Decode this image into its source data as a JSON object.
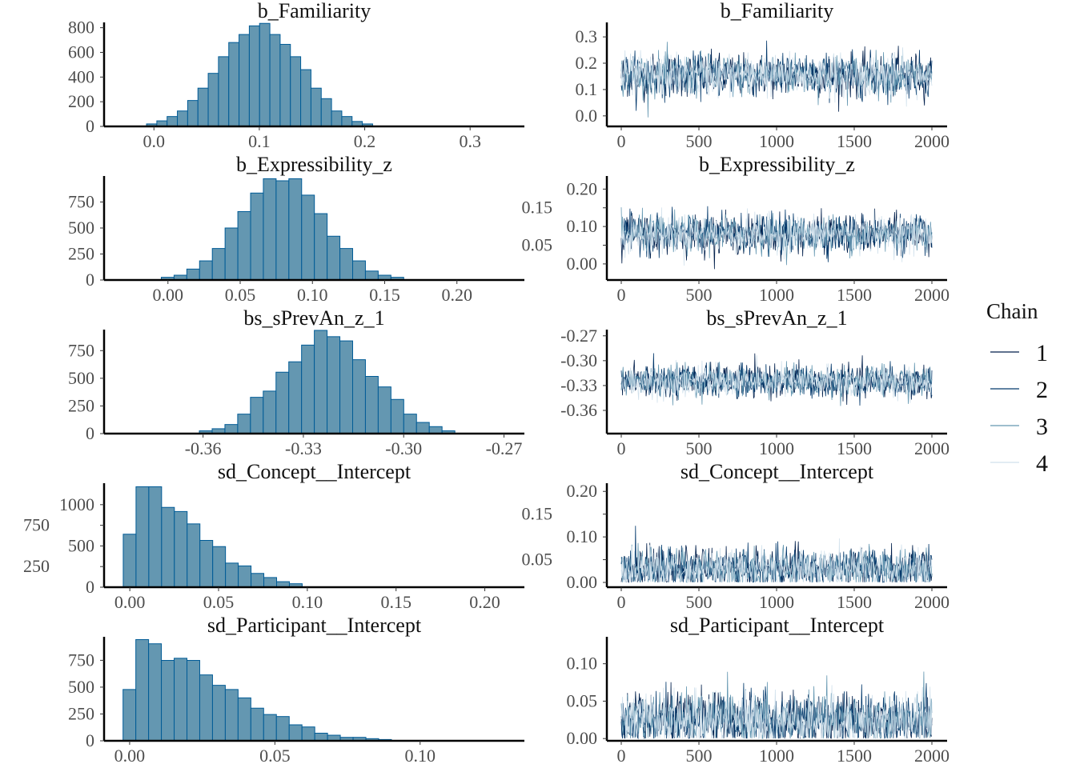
{
  "chart_data": {
    "type": "histogram+trace",
    "legend": {
      "title": "Chain",
      "position": "right",
      "entries": [
        "1",
        "2",
        "3",
        "4"
      ],
      "colors": [
        "#011f4b",
        "#03396c",
        "#6497b1",
        "#d1e1ec"
      ]
    },
    "hist_fill": "#6497b1",
    "hist_stroke": "#005b96",
    "parameters": [
      {
        "title": "b_Familiarity",
        "hist": {
          "xlim": [
            -0.0473,
            0.3515
          ],
          "ylim": [
            0,
            843
          ],
          "xticks": [
            0.0,
            0.1,
            0.2,
            0.3
          ],
          "xtick_labels": [
            "0.0",
            "0.1",
            "0.2",
            "0.3"
          ],
          "yticks": [
            0,
            200,
            400,
            600,
            800
          ],
          "ytick_labels": [
            "0",
            "200",
            "400",
            "600",
            "800"
          ],
          "bin_start": -0.007,
          "bin_width": 0.00975,
          "counts": [
            20,
            45,
            80,
            125,
            210,
            310,
            430,
            565,
            680,
            745,
            815,
            835,
            745,
            665,
            565,
            460,
            310,
            225,
            125,
            80,
            40,
            20
          ]
        },
        "trace": {
          "ylim": [
            -0.04,
            0.355
          ],
          "yticks": [
            0.0,
            0.1,
            0.2,
            0.3
          ],
          "ytick_labels": [
            "0.0",
            "0.1",
            "0.2",
            "0.3"
          ],
          "mean": 0.155,
          "sd": 0.04,
          "floor": null
        }
      },
      {
        "title": "b_Expressibility_z",
        "hist": {
          "xlim": [
            -0.0442,
            0.2467
          ],
          "ylim": [
            0,
            1000
          ],
          "xticks": [
            0.0,
            0.05,
            0.1,
            0.15,
            0.2
          ],
          "xtick_labels": [
            "0.00",
            "0.05",
            "0.10",
            "0.15",
            "0.20"
          ],
          "yticks": [
            0,
            250,
            500,
            750
          ],
          "ytick_labels": [
            "0",
            "250",
            "500",
            "750"
          ],
          "bin_start": -0.0046,
          "bin_width": 0.00883,
          "counts": [
            26,
            46,
            105,
            184,
            303,
            500,
            658,
            836,
            974,
            954,
            974,
            816,
            638,
            421,
            303,
            184,
            86,
            46,
            26
          ]
        },
        "trace": {
          "ylim": [
            -0.043,
            0.235
          ],
          "yticks": [
            0.0,
            0.05,
            0.1,
            0.15,
            0.2
          ],
          "ytick_labels": [
            "0.00",
            "0.05",
            "0.10",
            "0.15",
            "0.20"
          ],
          "mean": 0.08,
          "sd": 0.025,
          "floor": null
        }
      },
      {
        "title": "bs_sPrevAn_z_1",
        "hist": {
          "xlim": [
            -0.3896,
            -0.2639
          ],
          "ylim": [
            0,
            940
          ],
          "xticks": [
            -0.36,
            -0.33,
            -0.3,
            -0.27
          ],
          "xtick_labels": [
            "-0.36",
            "-0.33",
            "-0.30",
            "-0.27"
          ],
          "yticks": [
            0,
            250,
            500,
            750
          ],
          "ytick_labels": [
            "0",
            "250",
            "500",
            "750"
          ],
          "bin_start": -0.3611,
          "bin_width": 0.00382,
          "counts": [
            25,
            44,
            82,
            176,
            328,
            384,
            555,
            649,
            800,
            933,
            876,
            838,
            668,
            517,
            422,
            309,
            176,
            101,
            63,
            25
          ]
        },
        "trace": {
          "ylim": [
            -0.388,
            -0.2625
          ],
          "yticks": [
            -0.36,
            -0.33,
            -0.3,
            -0.27
          ],
          "ytick_labels": [
            "-0.36",
            "-0.33",
            "-0.30",
            "-0.27"
          ],
          "mean": -0.325,
          "sd": 0.0095,
          "floor": null
        }
      },
      {
        "title": "sd_Concept__Intercept",
        "hist": {
          "xlim": [
            -0.0145,
            0.2223
          ],
          "ylim": [
            0,
            1260
          ],
          "xticks": [
            0.0,
            0.05,
            0.1,
            0.15,
            0.2
          ],
          "xtick_labels": [
            "0.00",
            "0.05",
            "0.10",
            "0.15",
            "0.20"
          ],
          "yticks": [
            0,
            250,
            500,
            750,
            1000
          ],
          "ytick_labels": [
            "0",
            "250",
            "500",
            "750",
            "1000"
          ],
          "bin_start": -0.0037,
          "bin_width": 0.0072,
          "counts": [
            642,
            1217,
            1217,
            967,
            917,
            767,
            567,
            492,
            292,
            258,
            167,
            117,
            67,
            42
          ]
        },
        "trace": {
          "ylim": [
            -0.0105,
            0.218
          ],
          "yticks": [
            0.0,
            0.05,
            0.1,
            0.15,
            0.2
          ],
          "ytick_labels": [
            "0.00",
            "0.05",
            "0.10",
            "0.15",
            "0.20"
          ],
          "mean": 0.03,
          "sd": 0.022,
          "floor": 0.0
        }
      },
      {
        "title": "sd_Participant__Intercept",
        "hist": {
          "xlim": [
            -0.0088,
            0.1359
          ],
          "ylim": [
            0,
            969
          ],
          "xticks": [
            0.0,
            0.05,
            0.1
          ],
          "xtick_labels": [
            "0.00",
            "0.05",
            "0.10"
          ],
          "yticks": [
            0,
            250,
            500,
            750
          ],
          "ytick_labels": [
            "0",
            "250",
            "500",
            "750"
          ],
          "bin_start": -0.00227,
          "bin_width": 0.0044,
          "counts": [
            478,
            943,
            904,
            749,
            769,
            749,
            614,
            517,
            478,
            400,
            304,
            245,
            226,
            149,
            129,
            71,
            52,
            32,
            32,
            20,
            12
          ]
        },
        "trace": {
          "ylim": [
            -0.003,
            0.136
          ],
          "yticks": [
            0.0,
            0.05,
            0.1
          ],
          "ytick_labels": [
            "0.00",
            "0.05",
            "0.10"
          ],
          "mean": 0.025,
          "sd": 0.018,
          "floor": 0.0
        }
      }
    ],
    "trace_x": {
      "xlim": [
        -92.8,
        2098
      ],
      "xticks": [
        0,
        500,
        1000,
        1500,
        2000
      ],
      "xtick_labels": [
        "0",
        "500",
        "1000",
        "1500",
        "2000"
      ],
      "iterations": 2000
    }
  }
}
